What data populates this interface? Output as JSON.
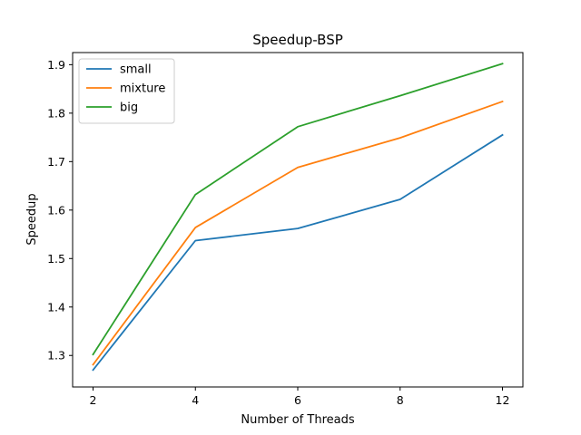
{
  "chart_data": {
    "type": "line",
    "title": "Speedup-BSP",
    "xlabel": "Number of Threads",
    "ylabel": "Speedup",
    "categories": [
      "2",
      "4",
      "6",
      "8",
      "12"
    ],
    "ylim": [
      1.235,
      1.925
    ],
    "yticks": [
      "1.3",
      "1.4",
      "1.5",
      "1.6",
      "1.7",
      "1.8",
      "1.9"
    ],
    "ytick_values": [
      1.3,
      1.4,
      1.5,
      1.6,
      1.7,
      1.8,
      1.9
    ],
    "grid": false,
    "legend_position": "upper-left",
    "series": [
      {
        "name": "small",
        "color": "#1f77b4",
        "values": [
          1.27,
          1.537,
          1.562,
          1.622,
          1.755
        ]
      },
      {
        "name": "mixture",
        "color": "#ff7f0e",
        "values": [
          1.281,
          1.564,
          1.688,
          1.749,
          1.824
        ]
      },
      {
        "name": "big",
        "color": "#2ca02c",
        "values": [
          1.302,
          1.632,
          1.772,
          1.836,
          1.902
        ]
      }
    ]
  }
}
